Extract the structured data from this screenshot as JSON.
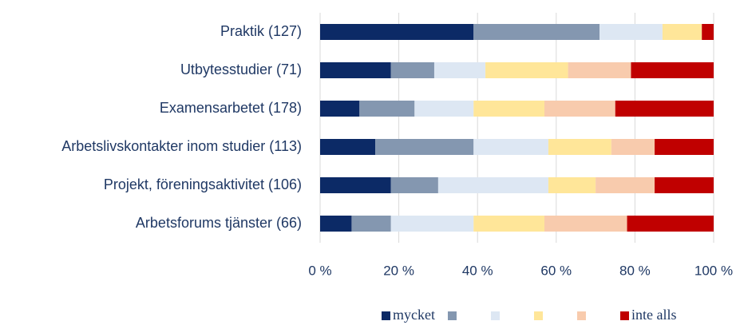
{
  "chart_data": {
    "type": "stacked_barh",
    "categories": [
      "Praktik (127)",
      "Utbytesstudier (71)",
      "Examensarbetet (178)",
      "Arbetslivskontakter inom studier (113)",
      "Projekt, föreningsaktivitet (106)",
      "Arbetsforums tjänster (66)"
    ],
    "series": [
      {
        "name": "mycket",
        "color": "#0c2a66",
        "values": [
          39,
          18,
          10,
          14,
          18,
          8
        ]
      },
      {
        "name": null,
        "color": "#8497b0",
        "values": [
          32,
          11,
          14,
          25,
          12,
          10
        ]
      },
      {
        "name": null,
        "color": "#dde7f3",
        "values": [
          16,
          13,
          15,
          19,
          28,
          21
        ]
      },
      {
        "name": null,
        "color": "#ffe699",
        "values": [
          10,
          21,
          18,
          16,
          12,
          18
        ]
      },
      {
        "name": null,
        "color": "#f8cbad",
        "values": [
          0,
          16,
          18,
          11,
          15,
          21
        ]
      },
      {
        "name": "inte alls",
        "color": "#c00000",
        "values": [
          3,
          21,
          25,
          15,
          15,
          22
        ]
      }
    ],
    "xlim": [
      0,
      100
    ],
    "xticks": [
      {
        "value": 0,
        "label": "0 %"
      },
      {
        "value": 20,
        "label": "20 %"
      },
      {
        "value": 40,
        "label": "40 %"
      },
      {
        "value": 60,
        "label": "60 %"
      },
      {
        "value": 80,
        "label": "80 %"
      },
      {
        "value": 100,
        "label": "100 %"
      }
    ],
    "grid": true,
    "legend": "bottom"
  }
}
